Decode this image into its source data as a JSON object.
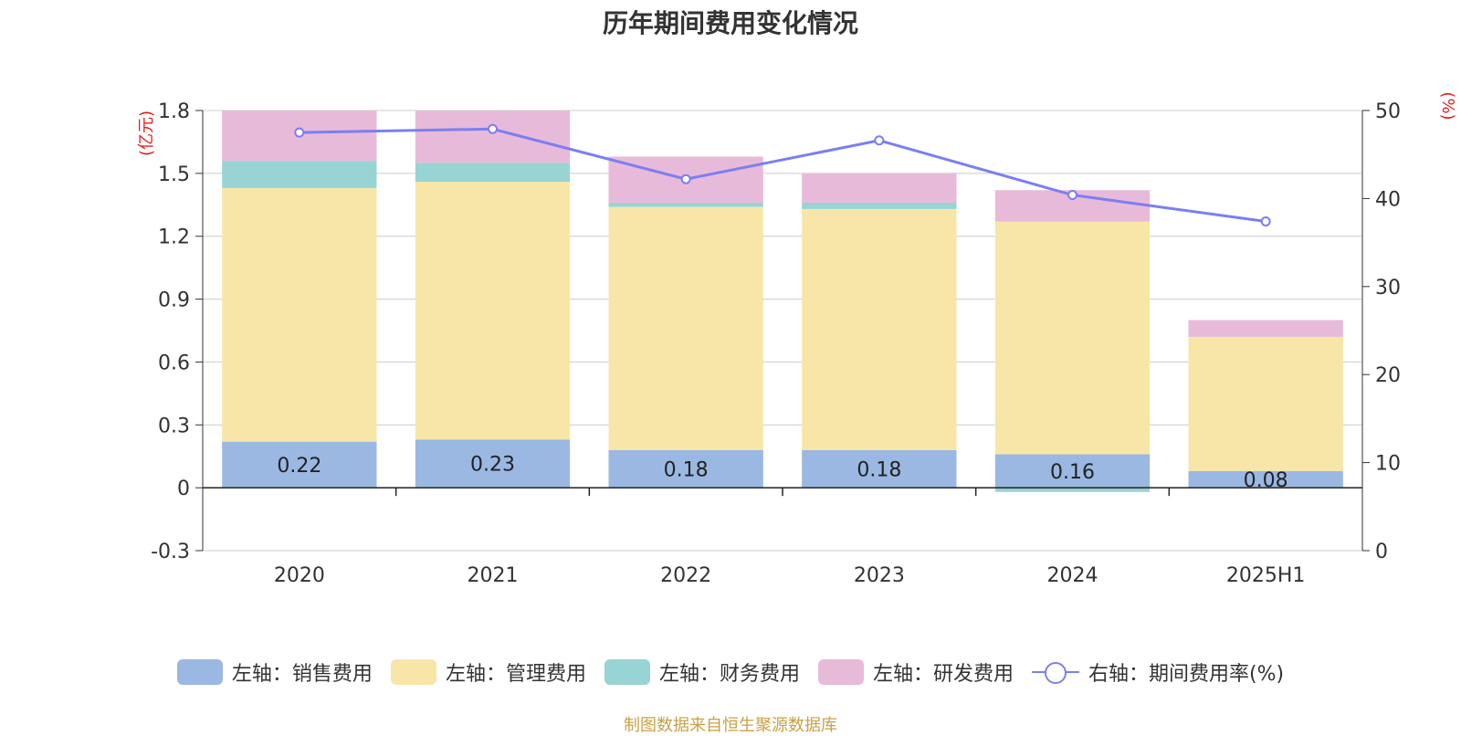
{
  "title": "历年期间费用变化情况",
  "source": "制图数据来自恒生聚源数据库",
  "colors": {
    "sales": "#9bb8e2",
    "admin": "#f7e6a8",
    "finance": "#98d4d4",
    "rd": "#e8bada",
    "rate": "#7b7ff0",
    "axis_unit": "#e02020",
    "grid": "#cccccc",
    "text": "#333333"
  },
  "legend": [
    {
      "label": "左轴：销售费用",
      "color": "#9bb8e2",
      "type": "bar"
    },
    {
      "label": "左轴：管理费用",
      "color": "#f7e6a8",
      "type": "bar"
    },
    {
      "label": "左轴：财务费用",
      "color": "#98d4d4",
      "type": "bar"
    },
    {
      "label": "左轴：研发费用",
      "color": "#e8bada",
      "type": "bar"
    },
    {
      "label": "右轴：期间费用率(%)",
      "color": "#7b7ff0",
      "type": "line"
    }
  ],
  "chart_data": {
    "type": "bar",
    "stacked": true,
    "categories": [
      "2020",
      "2021",
      "2022",
      "2023",
      "2024",
      "2025H1"
    ],
    "series": [
      {
        "name": "左轴：销售费用",
        "values": [
          0.22,
          0.23,
          0.18,
          0.18,
          0.16,
          0.08
        ],
        "labels": [
          "0.22",
          "0.23",
          "0.18",
          "0.18",
          "0.16",
          "0.08"
        ]
      },
      {
        "name": "左轴：管理费用",
        "values": [
          1.21,
          1.23,
          1.16,
          1.15,
          1.11,
          0.64
        ]
      },
      {
        "name": "左轴：财务费用",
        "values": [
          0.13,
          0.09,
          0.02,
          0.03,
          -0.02,
          0.0
        ]
      },
      {
        "name": "左轴：研发费用",
        "values": [
          0.24,
          0.25,
          0.22,
          0.14,
          0.15,
          0.08
        ]
      }
    ],
    "line_series": {
      "name": "右轴：期间费用率(%)",
      "axis": "right",
      "values": [
        47.5,
        47.9,
        42.2,
        46.6,
        40.4,
        37.4
      ]
    },
    "y_left": {
      "unit": "(亿元)",
      "ylim": [
        -0.3,
        1.8
      ],
      "ticks": [
        "-0.3",
        "0",
        "0.3",
        "0.6",
        "0.9",
        "1.2",
        "1.5",
        "1.8"
      ]
    },
    "y_right": {
      "unit": "(%)",
      "ylim": [
        0,
        50
      ],
      "ticks": [
        "0",
        "10",
        "20",
        "30",
        "40",
        "50"
      ]
    },
    "grid": true,
    "legend_position": "bottom"
  }
}
